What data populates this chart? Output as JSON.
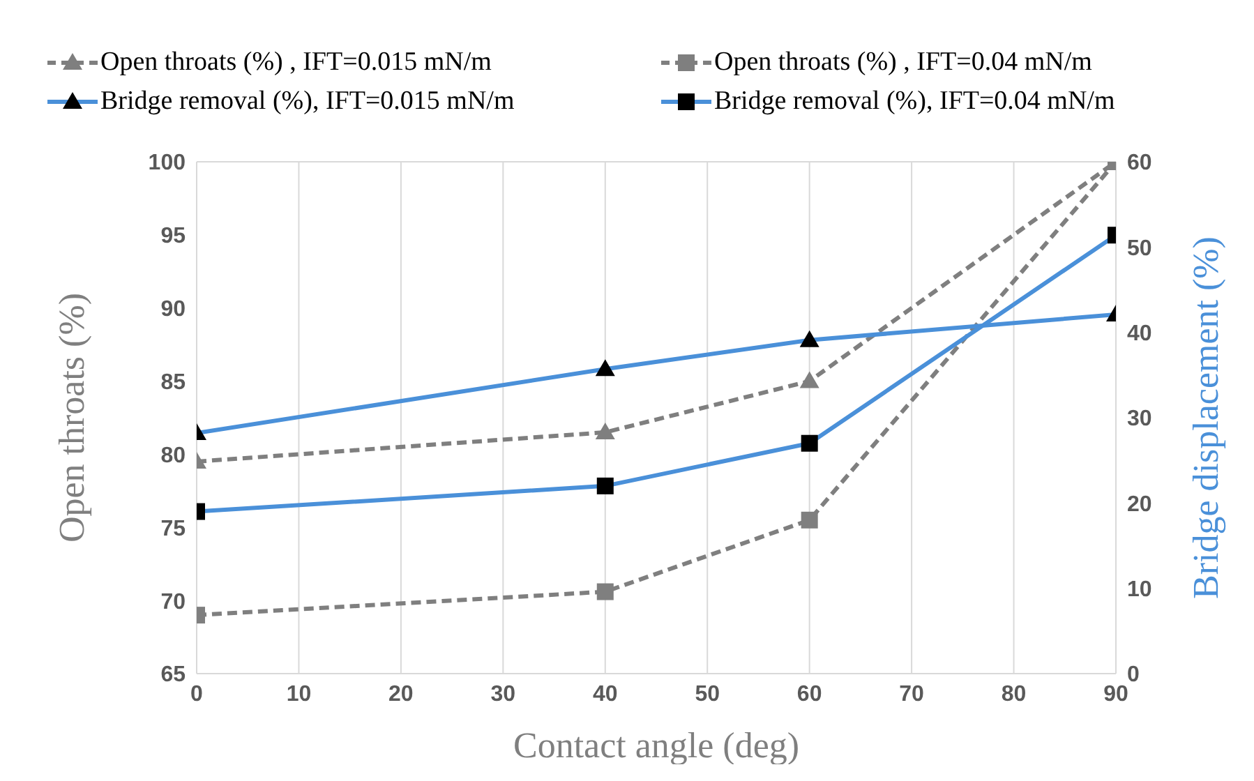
{
  "chart_data": {
    "type": "line",
    "xlabel": "Contact angle (deg)",
    "ylabel": "Open throats (%)",
    "y2label": "Bridge displacement  (%)",
    "x": [
      0,
      40,
      60,
      90
    ],
    "series": [
      {
        "name": "Open throats (%) , IFT=0.015 mN/m",
        "color": "#7f7f7f",
        "values": [
          79.5,
          81.5,
          85,
          100
        ],
        "marker": "triangle",
        "line_style": "dashed"
      },
      {
        "name": "Open throats (%) , IFT=0.04 mN/m",
        "color": "#7f7f7f",
        "values": [
          69,
          70.6,
          75.5,
          100
        ],
        "marker": "square",
        "line_style": "dashed"
      },
      {
        "name": "Bridge removal (%), IFT=0.015 mN/m",
        "color": "#4a90d9",
        "values": [
          28.2,
          35.7,
          39.1,
          42.1
        ],
        "marker": "triangle",
        "line_style": "solid",
        "axis": "y2"
      },
      {
        "name": "Bridge removal (%), IFT=0.04 mN/m",
        "color": "#4a90d9",
        "values": [
          19,
          22,
          27,
          51.4
        ],
        "marker": "square",
        "line_style": "solid",
        "axis": "y2"
      }
    ],
    "xlim": [
      0,
      90
    ],
    "xticks": [
      0,
      10,
      20,
      30,
      40,
      50,
      60,
      70,
      80,
      90
    ],
    "ylim": [
      65,
      100
    ],
    "yticks": [
      65,
      70,
      75,
      80,
      85,
      90,
      95,
      100
    ],
    "y2lim": [
      0,
      60
    ],
    "y2ticks": [
      0,
      10,
      20,
      30,
      40,
      50,
      60
    ],
    "grid": true,
    "legend": "top"
  }
}
